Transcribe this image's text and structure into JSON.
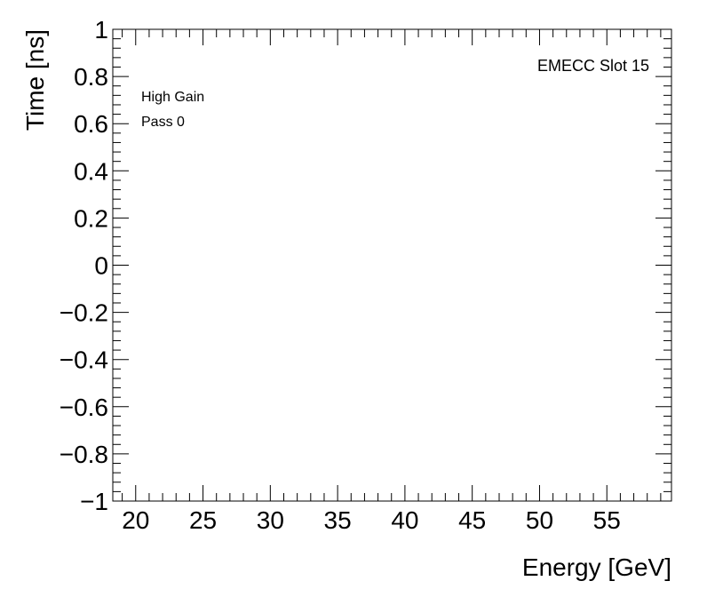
{
  "chart_data": {
    "type": "scatter",
    "title": "",
    "xlabel": "Energy [GeV]",
    "ylabel": "Time [ns]",
    "xlim": [
      18.3,
      59.8
    ],
    "ylim": [
      -1,
      1
    ],
    "x_major_ticks": [
      20,
      25,
      30,
      35,
      40,
      45,
      50,
      55
    ],
    "x_minor_step": 1,
    "y_major_ticks": [
      -1,
      -0.8,
      -0.6,
      -0.4,
      -0.2,
      0,
      0.2,
      0.4,
      0.6,
      0.8,
      1
    ],
    "y_minor_step": 0.04,
    "x_tick_labels": [
      "20",
      "25",
      "30",
      "35",
      "40",
      "45",
      "50",
      "55"
    ],
    "y_tick_labels": [
      "−1",
      "−0.8",
      "−0.6",
      "−0.4",
      "−0.2",
      "0",
      "0.2",
      "0.4",
      "0.6",
      "0.8",
      "1"
    ],
    "grid": false,
    "series": [],
    "annotations": {
      "gain": "High Gain",
      "pass": "Pass 0",
      "slot": "EMECC Slot 15"
    }
  }
}
